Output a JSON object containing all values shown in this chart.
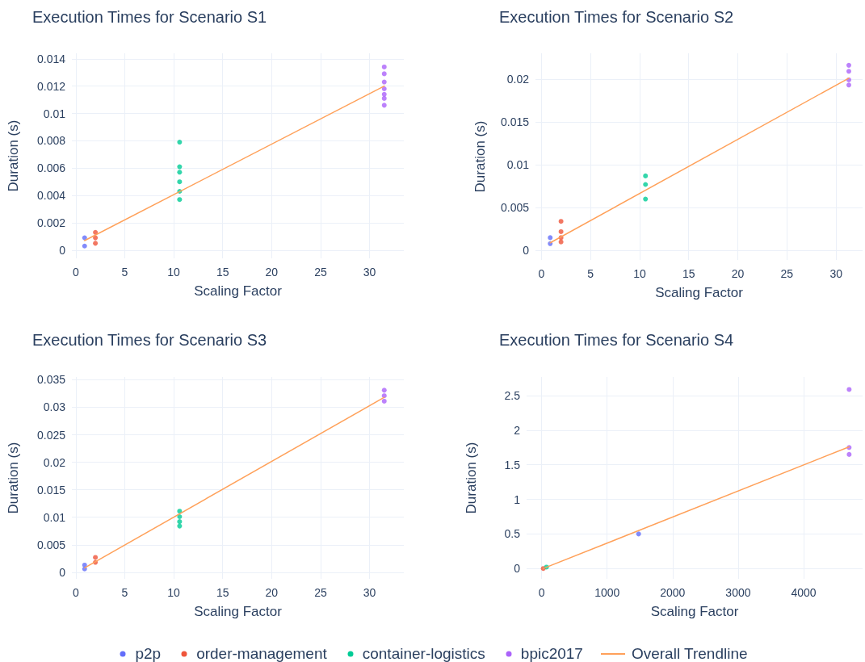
{
  "chart_data": [
    {
      "type": "scatter",
      "title": "Execution Times for Scenario S1",
      "xlabel": "Scaling Factor",
      "ylabel": "Duration (s)",
      "xlim": [
        -0.4,
        33.5
      ],
      "xticks": [
        0,
        5,
        10,
        15,
        20,
        25,
        30
      ],
      "ylim": [
        -0.0006,
        0.0144
      ],
      "yticks": [
        0,
        0.002,
        0.004,
        0.006,
        0.008,
        0.01,
        0.012,
        0.014
      ],
      "grid": true,
      "marker": "circle",
      "legend": "bottom",
      "series": [
        {
          "name": "p2p",
          "color": "#636efa",
          "x": [
            0.9,
            0.9
          ],
          "values": [
            0.0009,
            0.0003
          ]
        },
        {
          "name": "order-management",
          "color": "#ef553b",
          "x": [
            2,
            2,
            2
          ],
          "values": [
            0.0013,
            0.0009,
            0.0005
          ]
        },
        {
          "name": "container-logistics",
          "color": "#00cc96",
          "x": [
            10.6,
            10.6,
            10.6,
            10.6,
            10.6,
            10.6
          ],
          "values": [
            0.0079,
            0.0061,
            0.0057,
            0.005,
            0.0043,
            0.0037
          ]
        },
        {
          "name": "bpic2017",
          "color": "#ab63fa",
          "x": [
            31.5,
            31.5,
            31.5,
            31.5,
            31.5,
            31.5,
            31.5
          ],
          "values": [
            0.0134,
            0.0129,
            0.0123,
            0.0118,
            0.0114,
            0.0111,
            0.0106
          ]
        },
        {
          "name": "Overall Trendline",
          "type": "line",
          "color": "#ffa15a",
          "marker": "none",
          "x": [
            0.9,
            31.5
          ],
          "values": [
            0.0007,
            0.012
          ]
        }
      ]
    },
    {
      "type": "scatter",
      "title": "Execution Times for Scenario S2",
      "xlabel": "Scaling Factor",
      "ylabel": "Duration (s)",
      "xlim": [
        -0.6,
        32.7
      ],
      "xticks": [
        0,
        5,
        10,
        15,
        20,
        25,
        30
      ],
      "ylim": [
        -0.0011,
        0.023
      ],
      "yticks": [
        0,
        0.005,
        0.01,
        0.015,
        0.02
      ],
      "grid": true,
      "marker": "circle",
      "legend": "bottom",
      "series": [
        {
          "name": "p2p",
          "color": "#636efa",
          "x": [
            0.9,
            0.9
          ],
          "values": [
            0.0015,
            0.0008
          ]
        },
        {
          "name": "order-management",
          "color": "#ef553b",
          "x": [
            2,
            2,
            2,
            2
          ],
          "values": [
            0.0034,
            0.0022,
            0.0015,
            0.001
          ]
        },
        {
          "name": "container-logistics",
          "color": "#00cc96",
          "x": [
            10.6,
            10.6,
            10.6
          ],
          "values": [
            0.0087,
            0.0077,
            0.006
          ]
        },
        {
          "name": "bpic2017",
          "color": "#ab63fa",
          "x": [
            31.3,
            31.3,
            31.3,
            31.3
          ],
          "values": [
            0.0216,
            0.0209,
            0.0199,
            0.0193
          ]
        },
        {
          "name": "Overall Trendline",
          "type": "line",
          "color": "#ffa15a",
          "marker": "none",
          "x": [
            0.9,
            31.3
          ],
          "values": [
            0.0009,
            0.0201
          ]
        }
      ]
    },
    {
      "type": "scatter",
      "title": "Execution Times for Scenario S3",
      "xlabel": "Scaling Factor",
      "ylabel": "Duration (s)",
      "xlim": [
        -0.4,
        33.5
      ],
      "xticks": [
        0,
        5,
        10,
        15,
        20,
        25,
        30
      ],
      "ylim": [
        -0.0012,
        0.0355
      ],
      "yticks": [
        0,
        0.005,
        0.01,
        0.015,
        0.02,
        0.025,
        0.03,
        0.035
      ],
      "grid": true,
      "marker": "circle",
      "legend": "bottom",
      "series": [
        {
          "name": "p2p",
          "color": "#636efa",
          "x": [
            0.9,
            0.9
          ],
          "values": [
            0.0013,
            0.0006
          ]
        },
        {
          "name": "order-management",
          "color": "#ef553b",
          "x": [
            2,
            2
          ],
          "values": [
            0.0027,
            0.0018
          ]
        },
        {
          "name": "container-logistics",
          "color": "#00cc96",
          "x": [
            10.6,
            10.6,
            10.6,
            10.6
          ],
          "values": [
            0.0111,
            0.0101,
            0.0092,
            0.0084
          ]
        },
        {
          "name": "bpic2017",
          "color": "#ab63fa",
          "x": [
            31.5,
            31.5,
            31.5
          ],
          "values": [
            0.0331,
            0.0321,
            0.0311
          ]
        },
        {
          "name": "Overall Trendline",
          "type": "line",
          "color": "#ffa15a",
          "marker": "none",
          "x": [
            0.9,
            31.5
          ],
          "values": [
            0.0008,
            0.0318
          ]
        }
      ]
    },
    {
      "type": "scatter",
      "title": "Execution Times for Scenario S4",
      "xlabel": "Scaling Factor",
      "ylabel": "Duration (s)",
      "xlim": [
        -230,
        4900
      ],
      "xticks": [
        0,
        1000,
        2000,
        3000,
        4000
      ],
      "ylim": [
        -0.15,
        2.77
      ],
      "yticks": [
        0,
        0.5,
        1,
        1.5,
        2,
        2.5
      ],
      "grid": true,
      "marker": "circle",
      "legend": "bottom",
      "series": [
        {
          "name": "p2p",
          "color": "#636efa",
          "x": [
            1480
          ],
          "values": [
            0.5
          ]
        },
        {
          "name": "order-management",
          "color": "#ef553b",
          "x": [
            25
          ],
          "values": [
            0
          ]
        },
        {
          "name": "container-logistics",
          "color": "#00cc96",
          "x": [
            74
          ],
          "values": [
            0.02
          ]
        },
        {
          "name": "bpic2017",
          "color": "#ab63fa",
          "x": [
            4695,
            4695,
            4695
          ],
          "values": [
            2.59,
            1.75,
            1.65
          ]
        },
        {
          "name": "Overall Trendline",
          "type": "line",
          "color": "#ffa15a",
          "marker": "none",
          "x": [
            25,
            4695
          ],
          "values": [
            0,
            1.76
          ]
        }
      ]
    }
  ]
}
